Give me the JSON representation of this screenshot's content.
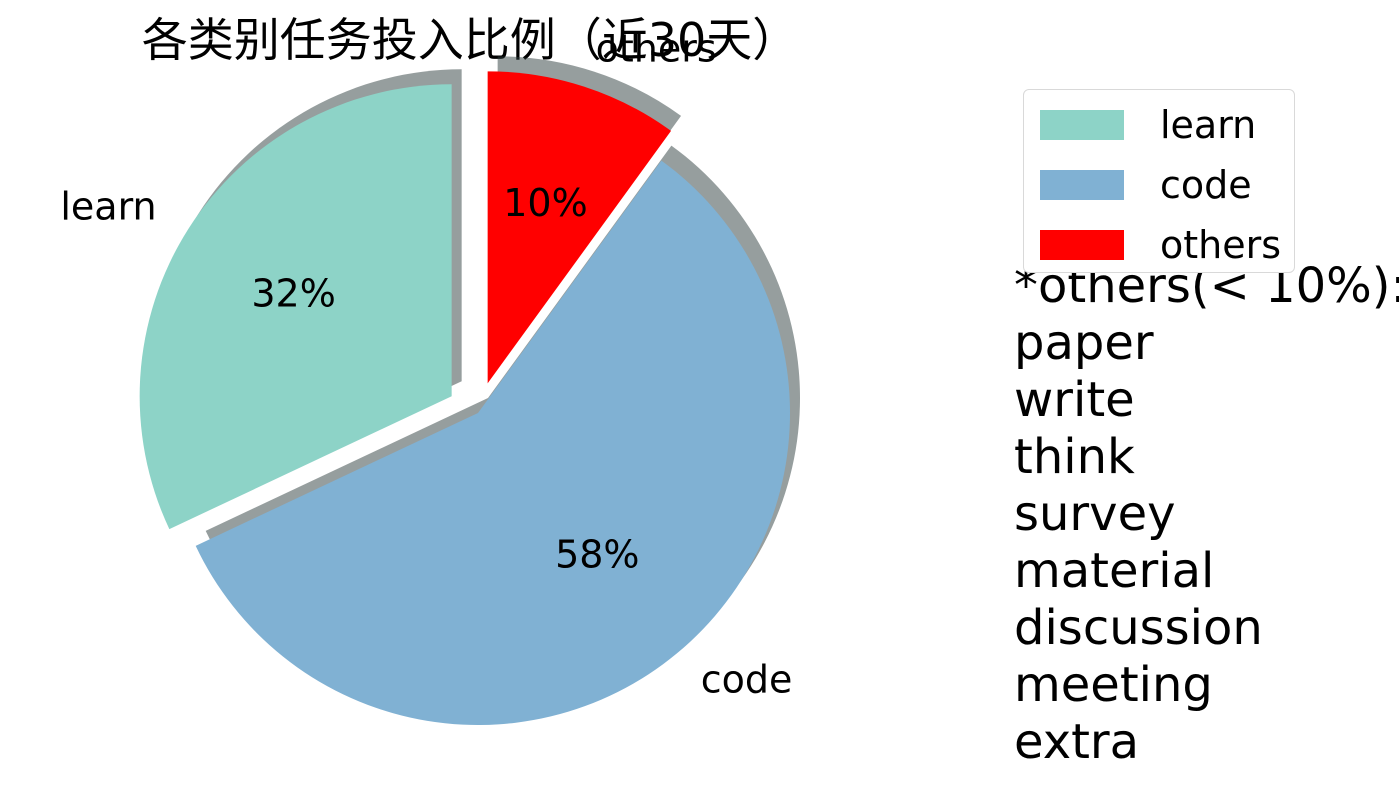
{
  "chart_data": {
    "type": "pie",
    "title": "各类别任务投入比例（近30天）",
    "slices": [
      {
        "label": "learn",
        "value": 32,
        "pct_label": "32%",
        "color": "#8dd3c7",
        "explode": true
      },
      {
        "label": "code",
        "value": 58,
        "pct_label": "58%",
        "color": "#80b1d3",
        "explode": false
      },
      {
        "label": "others",
        "value": 10,
        "pct_label": "10%",
        "color": "#ff0000",
        "explode": true
      }
    ],
    "start_angle_deg": 90,
    "direction": "counterclockwise",
    "shadow": true,
    "legend": {
      "placement": "top-right",
      "entries": [
        "learn",
        "code",
        "others"
      ]
    }
  },
  "note": {
    "heading": "*others(< 10%):",
    "items": [
      "paper",
      "write",
      "think",
      "survey",
      "material",
      "discussion",
      "meeting",
      "extra"
    ]
  }
}
